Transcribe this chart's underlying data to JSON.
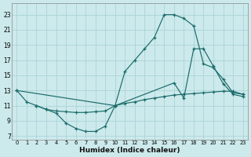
{
  "xlabel": "Humidex (Indice chaleur)",
  "bg_color": "#cce9eb",
  "grid_color": "#aad4d8",
  "line_color": "#1a6b6b",
  "xlim": [
    -0.5,
    23.5
  ],
  "ylim": [
    6.5,
    24.5
  ],
  "xticks": [
    0,
    1,
    2,
    3,
    4,
    5,
    6,
    7,
    8,
    9,
    10,
    11,
    12,
    13,
    14,
    15,
    16,
    17,
    18,
    19,
    20,
    21,
    22,
    23
  ],
  "yticks": [
    7,
    9,
    11,
    13,
    15,
    17,
    19,
    21,
    23
  ],
  "curve_diag_x": [
    0,
    10,
    11,
    12,
    13,
    14,
    15,
    16,
    17,
    18,
    19,
    20,
    21,
    22,
    23
  ],
  "curve_diag_y": [
    13.0,
    11.0,
    15.5,
    17.0,
    18.5,
    20.0,
    23.0,
    23.0,
    22.5,
    21.5,
    16.5,
    16.0,
    14.5,
    12.7,
    12.5
  ],
  "curve_flat_x": [
    0,
    1,
    2,
    3,
    4,
    5,
    6,
    7,
    8,
    9,
    10,
    11,
    12,
    13,
    14,
    15,
    16,
    17,
    18,
    19,
    20,
    21,
    22,
    23
  ],
  "curve_flat_y": [
    13.0,
    11.5,
    11.0,
    10.5,
    10.3,
    10.2,
    10.1,
    10.1,
    10.2,
    10.3,
    11.0,
    11.3,
    11.5,
    11.8,
    12.0,
    12.2,
    12.4,
    12.5,
    12.6,
    12.7,
    12.8,
    12.9,
    12.9,
    12.5
  ],
  "curve_dip_x": [
    2,
    3,
    4,
    5,
    6,
    7,
    8,
    9,
    10,
    16,
    17,
    18,
    19,
    20,
    21,
    22,
    23
  ],
  "curve_dip_y": [
    11.0,
    10.5,
    10.0,
    8.7,
    8.0,
    7.6,
    7.6,
    8.3,
    11.0,
    14.0,
    12.0,
    18.5,
    18.5,
    16.2,
    13.9,
    12.5,
    12.2
  ]
}
